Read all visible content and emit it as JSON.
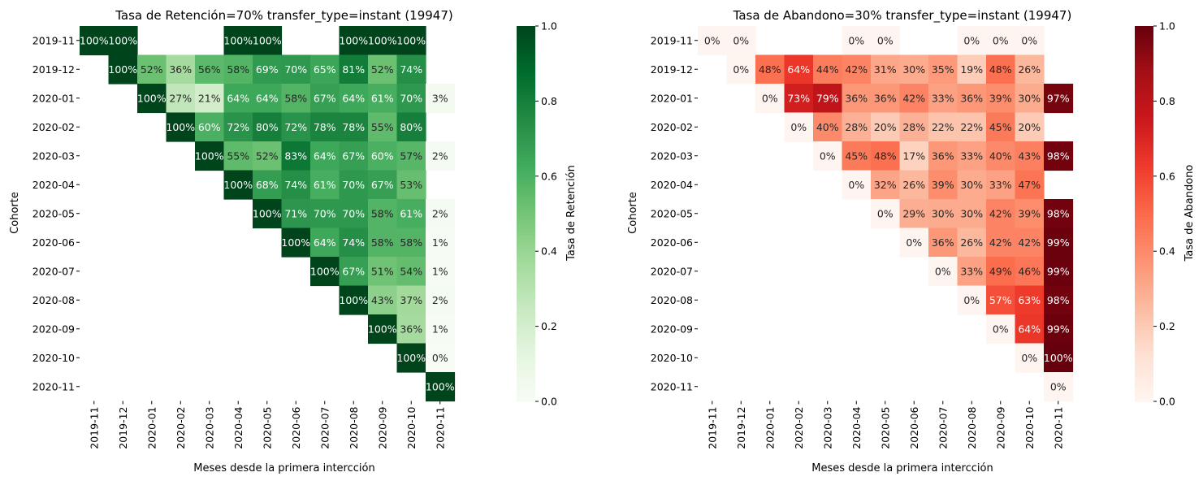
{
  "chart_data": [
    {
      "type": "heatmap",
      "title": "Tasa de Retención=70% transfer_type=instant (19947)",
      "xlabel": "Meses desde la primera intercción",
      "ylabel": "Cohorte",
      "colorbar_label": "Tasa de Retención",
      "colormap": "Greens",
      "colormap_stops": [
        "#f7fcf5",
        "#e5f5e0",
        "#c7e9c0",
        "#a1d99b",
        "#74c476",
        "#41ab5d",
        "#238b45",
        "#006d2c",
        "#00441b"
      ],
      "vmin": 0,
      "vmax": 1,
      "colorbar_ticks": [
        "0.0",
        "0.2",
        "0.4",
        "0.6",
        "0.8",
        "1.0"
      ],
      "x_categories": [
        "2019-11",
        "2019-12",
        "2020-01",
        "2020-02",
        "2020-03",
        "2020-04",
        "2020-05",
        "2020-06",
        "2020-07",
        "2020-08",
        "2020-09",
        "2020-10",
        "2020-11"
      ],
      "y_categories": [
        "2019-11",
        "2019-12",
        "2020-01",
        "2020-02",
        "2020-03",
        "2020-04",
        "2020-05",
        "2020-06",
        "2020-07",
        "2020-08",
        "2020-09",
        "2020-10",
        "2020-11"
      ],
      "values": [
        [
          1.0,
          1.0,
          null,
          null,
          null,
          1.0,
          1.0,
          null,
          null,
          1.0,
          1.0,
          1.0,
          null
        ],
        [
          null,
          1.0,
          0.52,
          0.36,
          0.56,
          0.58,
          0.69,
          0.7,
          0.65,
          0.81,
          0.52,
          0.74,
          null
        ],
        [
          null,
          null,
          1.0,
          0.27,
          0.21,
          0.64,
          0.64,
          0.58,
          0.67,
          0.64,
          0.61,
          0.7,
          0.03
        ],
        [
          null,
          null,
          null,
          1.0,
          0.6,
          0.72,
          0.8,
          0.72,
          0.78,
          0.78,
          0.55,
          0.8,
          null
        ],
        [
          null,
          null,
          null,
          null,
          1.0,
          0.55,
          0.52,
          0.83,
          0.64,
          0.67,
          0.6,
          0.57,
          0.02
        ],
        [
          null,
          null,
          null,
          null,
          null,
          1.0,
          0.68,
          0.74,
          0.61,
          0.7,
          0.67,
          0.53,
          null
        ],
        [
          null,
          null,
          null,
          null,
          null,
          null,
          1.0,
          0.71,
          0.7,
          0.7,
          0.58,
          0.61,
          0.02
        ],
        [
          null,
          null,
          null,
          null,
          null,
          null,
          null,
          1.0,
          0.64,
          0.74,
          0.58,
          0.58,
          0.01
        ],
        [
          null,
          null,
          null,
          null,
          null,
          null,
          null,
          null,
          1.0,
          0.67,
          0.51,
          0.54,
          0.01
        ],
        [
          null,
          null,
          null,
          null,
          null,
          null,
          null,
          null,
          null,
          1.0,
          0.43,
          0.37,
          0.02
        ],
        [
          null,
          null,
          null,
          null,
          null,
          null,
          null,
          null,
          null,
          null,
          1.0,
          0.36,
          0.01
        ],
        [
          null,
          null,
          null,
          null,
          null,
          null,
          null,
          null,
          null,
          null,
          null,
          1.0,
          0.0
        ],
        [
          null,
          null,
          null,
          null,
          null,
          null,
          null,
          null,
          null,
          null,
          null,
          null,
          1.0
        ]
      ]
    },
    {
      "type": "heatmap",
      "title": "Tasa de Abandono=30% transfer_type=instant (19947)",
      "xlabel": "Meses desde la primera intercción",
      "ylabel": "Cohorte",
      "colorbar_label": "Tasa de Abandono",
      "colormap": "Reds",
      "colormap_stops": [
        "#fff5f0",
        "#fee0d2",
        "#fcbba1",
        "#fc9272",
        "#fb6a4a",
        "#ef3b2c",
        "#cb181d",
        "#a50f15",
        "#67000d"
      ],
      "vmin": 0,
      "vmax": 1,
      "colorbar_ticks": [
        "0.0",
        "0.2",
        "0.4",
        "0.6",
        "0.8",
        "1.0"
      ],
      "x_categories": [
        "2019-11",
        "2019-12",
        "2020-01",
        "2020-02",
        "2020-03",
        "2020-04",
        "2020-05",
        "2020-06",
        "2020-07",
        "2020-08",
        "2020-09",
        "2020-10",
        "2020-11"
      ],
      "y_categories": [
        "2019-11",
        "2019-12",
        "2020-01",
        "2020-02",
        "2020-03",
        "2020-04",
        "2020-05",
        "2020-06",
        "2020-07",
        "2020-08",
        "2020-09",
        "2020-10",
        "2020-11"
      ],
      "values": [
        [
          0.0,
          0.0,
          null,
          null,
          null,
          0.0,
          0.0,
          null,
          null,
          0.0,
          0.0,
          0.0,
          null
        ],
        [
          null,
          0.0,
          0.48,
          0.64,
          0.44,
          0.42,
          0.31,
          0.3,
          0.35,
          0.19,
          0.48,
          0.26,
          null
        ],
        [
          null,
          null,
          0.0,
          0.73,
          0.79,
          0.36,
          0.36,
          0.42,
          0.33,
          0.36,
          0.39,
          0.3,
          0.97
        ],
        [
          null,
          null,
          null,
          0.0,
          0.4,
          0.28,
          0.2,
          0.28,
          0.22,
          0.22,
          0.45,
          0.2,
          null
        ],
        [
          null,
          null,
          null,
          null,
          0.0,
          0.45,
          0.48,
          0.17,
          0.36,
          0.33,
          0.4,
          0.43,
          0.98
        ],
        [
          null,
          null,
          null,
          null,
          null,
          0.0,
          0.32,
          0.26,
          0.39,
          0.3,
          0.33,
          0.47,
          null
        ],
        [
          null,
          null,
          null,
          null,
          null,
          null,
          0.0,
          0.29,
          0.3,
          0.3,
          0.42,
          0.39,
          0.98
        ],
        [
          null,
          null,
          null,
          null,
          null,
          null,
          null,
          0.0,
          0.36,
          0.26,
          0.42,
          0.42,
          0.99
        ],
        [
          null,
          null,
          null,
          null,
          null,
          null,
          null,
          null,
          0.0,
          0.33,
          0.49,
          0.46,
          0.99
        ],
        [
          null,
          null,
          null,
          null,
          null,
          null,
          null,
          null,
          null,
          0.0,
          0.57,
          0.63,
          0.98
        ],
        [
          null,
          null,
          null,
          null,
          null,
          null,
          null,
          null,
          null,
          null,
          0.0,
          0.64,
          0.99
        ],
        [
          null,
          null,
          null,
          null,
          null,
          null,
          null,
          null,
          null,
          null,
          null,
          0.0,
          1.0
        ],
        [
          null,
          null,
          null,
          null,
          null,
          null,
          null,
          null,
          null,
          null,
          null,
          null,
          0.0
        ]
      ]
    }
  ]
}
